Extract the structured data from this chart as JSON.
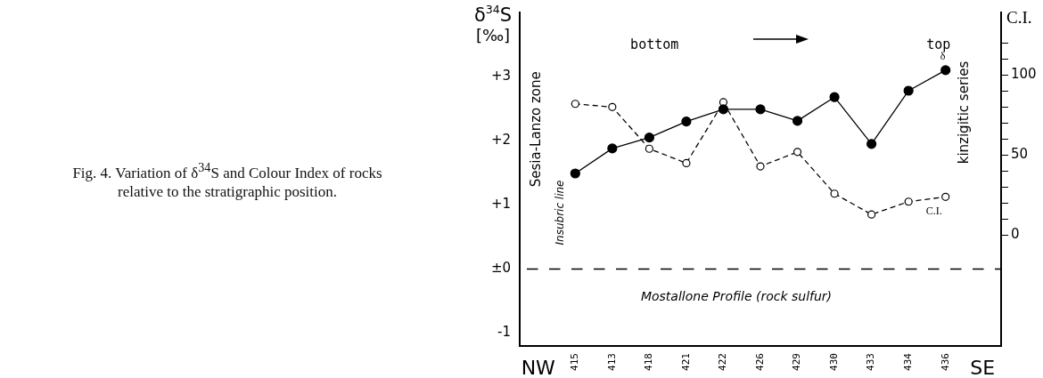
{
  "chart_data": {
    "type": "line",
    "title": "Fig. 4. Variation of δ$^{34}$S and Colour Index of rocks relative to the stratigraphic position.",
    "ylabel": "δ$^{34}$S [‰]",
    "y2label": "C.I.",
    "categories": [
      "NW",
      "415",
      "413",
      "418",
      "421",
      "422",
      "426",
      "429",
      "430",
      "433",
      "434",
      "436",
      "SE"
    ],
    "series": [
      {
        "name": "δ",
        "color": "#000000",
        "line_style": "solid",
        "values": [
          null,
          1.49,
          1.88,
          2.05,
          2.3,
          2.49,
          2.49,
          2.31,
          2.68,
          1.95,
          2.78,
          3.1,
          null
        ]
      },
      {
        "name": "C.I.",
        "color": "#000000",
        "axis": "y2",
        "line_style": "dashed",
        "values": [
          null,
          82,
          80,
          54,
          45,
          83,
          43,
          52,
          26,
          13,
          21,
          24,
          null
        ]
      }
    ],
    "ylim": [
      -1.2,
      4
    ],
    "yticks": [
      {
        "value": -1,
        "label": "-1"
      },
      {
        "value": 0,
        "label": "±0"
      },
      {
        "value": 1,
        "label": "+1"
      },
      {
        "value": 2,
        "label": "+2"
      },
      {
        "value": 3,
        "label": "+3"
      }
    ],
    "y2lim": [
      -69,
      139
    ],
    "y2ticks": [
      0,
      {
        "value": 10,
        "label": null
      },
      {
        "value": 20,
        "label": null
      },
      {
        "value": 30,
        "label": null
      },
      {
        "value": 40,
        "label": null
      },
      50,
      {
        "value": 60,
        "label": null
      },
      {
        "value": 70,
        "label": null
      },
      {
        "value": 80,
        "label": null
      },
      {
        "value": 90,
        "label": null
      },
      100,
      {
        "value": 110,
        "label": null
      },
      {
        "value": 120,
        "label": null
      }
    ],
    "ref_lines": [
      {
        "axis": "y",
        "value": 0,
        "label": null,
        "line_style": "dashed"
      }
    ],
    "annotations": [
      "bottom",
      "top",
      "Sesia-Lanzo zone",
      "Insubric line",
      "kinzigitic series",
      "Mostallone Profile (rock sulfur)"
    ],
    "marker": "circle",
    "grid": false,
    "legend": false
  }
}
